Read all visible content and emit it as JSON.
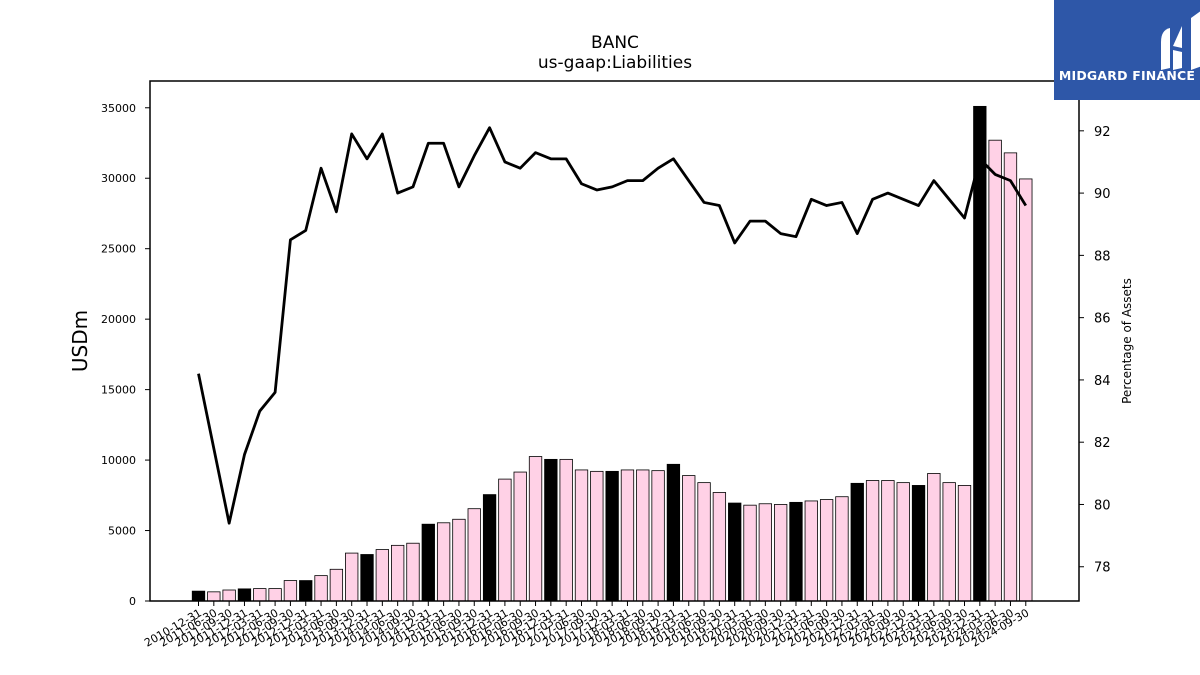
{
  "chart_data": {
    "type": "bar",
    "title": "BANC",
    "subtitle": "us-gaap:Liabilities",
    "ylabel": "USDm",
    "y2label": "Percentage of Assets",
    "ylim": [
      0,
      36900
    ],
    "y2lim": [
      76.9,
      93.6
    ],
    "yticks": [
      0,
      5000,
      10000,
      15000,
      20000,
      25000,
      30000,
      35000
    ],
    "y2ticks": [
      78,
      80,
      82,
      84,
      86,
      88,
      90,
      92
    ],
    "categories": [
      "2010-12-31",
      "2011-06-30",
      "2011-09-30",
      "2011-12-31",
      "2012-03-31",
      "2012-06-30",
      "2012-09-30",
      "2012-12-31",
      "2013-03-31",
      "2013-06-30",
      "2013-09-30",
      "2013-12-31",
      "2014-03-31",
      "2014-06-30",
      "2014-09-30",
      "2014-12-31",
      "2015-03-31",
      "2015-06-30",
      "2015-09-30",
      "2015-12-31",
      "2016-03-31",
      "2016-06-30",
      "2016-09-30",
      "2016-12-31",
      "2017-03-31",
      "2017-06-30",
      "2017-09-30",
      "2017-12-31",
      "2018-03-31",
      "2018-06-30",
      "2018-09-30",
      "2018-12-31",
      "2019-03-31",
      "2019-06-30",
      "2019-09-30",
      "2019-12-31",
      "2020-03-31",
      "2020-06-30",
      "2020-09-30",
      "2020-12-31",
      "2021-03-31",
      "2021-06-30",
      "2021-09-30",
      "2021-12-31",
      "2022-03-31",
      "2022-06-30",
      "2022-09-30",
      "2022-12-31",
      "2023-03-31",
      "2023-06-30",
      "2023-09-30",
      "2023-12-31",
      "2024-03-31",
      "2024-06-30",
      "2024-09-30"
    ],
    "series": [
      {
        "type": "bar",
        "values": [
          700,
          650,
          780,
          860,
          880,
          880,
          1450,
          1450,
          1800,
          2250,
          3400,
          3300,
          3650,
          3950,
          4100,
          5450,
          5550,
          5800,
          6550,
          7550,
          8650,
          9150,
          10250,
          10050,
          10050,
          9300,
          9200,
          9200,
          9300,
          9300,
          9250,
          9700,
          8900,
          8400,
          7700,
          6950,
          6800,
          6900,
          6850,
          7000,
          7100,
          7200,
          7400,
          8350,
          8550,
          8550,
          8400,
          8200,
          9050,
          8400,
          8200,
          35100,
          32700,
          31800,
          29950
        ],
        "year_end": [
          true,
          false,
          false,
          true,
          false,
          false,
          false,
          true,
          false,
          false,
          false,
          true,
          false,
          false,
          false,
          true,
          false,
          false,
          false,
          true,
          false,
          false,
          false,
          true,
          false,
          false,
          false,
          true,
          false,
          false,
          false,
          true,
          false,
          false,
          false,
          true,
          false,
          false,
          false,
          true,
          false,
          false,
          false,
          true,
          false,
          false,
          false,
          true,
          false,
          false,
          false,
          true,
          false,
          false,
          false
        ]
      },
      {
        "type": "line",
        "axis": "secondary",
        "values": [
          84.2,
          81.8,
          79.4,
          81.6,
          83.0,
          83.6,
          88.5,
          88.8,
          90.8,
          89.4,
          91.9,
          91.1,
          91.9,
          90.0,
          90.2,
          91.6,
          91.6,
          90.2,
          91.2,
          92.1,
          91.0,
          90.8,
          91.3,
          91.1,
          91.1,
          90.3,
          90.1,
          90.2,
          90.4,
          90.4,
          90.8,
          91.1,
          90.4,
          89.7,
          89.6,
          88.4,
          89.1,
          89.1,
          88.7,
          88.6,
          89.8,
          89.6,
          89.7,
          88.7,
          89.8,
          90.0,
          89.8,
          89.6,
          90.4,
          89.8,
          89.2,
          91.1,
          90.6,
          90.4,
          89.6
        ]
      }
    ],
    "colors": {
      "bar_year_end": "#000000",
      "bar_quarter": "#ffd1e6",
      "line": "#000000"
    },
    "grid": false,
    "legend": "none"
  },
  "logo": {
    "text": "MIDGARD FINANCE",
    "color": "#2e57a8"
  }
}
